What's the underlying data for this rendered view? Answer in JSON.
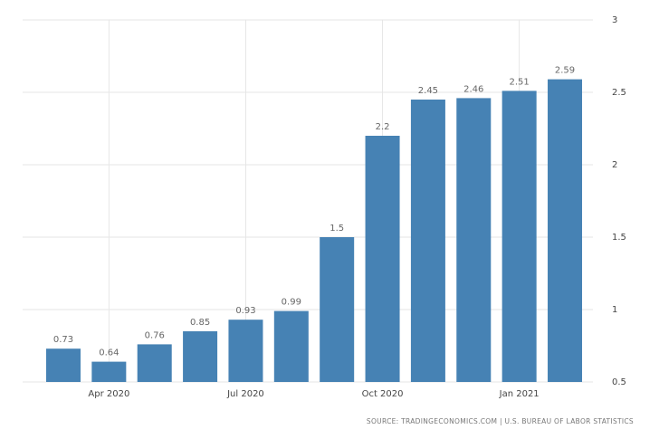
{
  "chart_data": {
    "type": "bar",
    "categories": [
      null,
      "Apr 2020",
      null,
      null,
      "Jul 2020",
      null,
      null,
      "Oct 2020",
      null,
      null,
      "Jan 2021",
      null
    ],
    "values": [
      0.73,
      0.64,
      0.76,
      0.85,
      0.93,
      0.99,
      1.5,
      2.2,
      2.45,
      2.46,
      2.51,
      2.59
    ],
    "color": "#4682b4",
    "ylim": [
      0.5,
      3
    ],
    "yticks": [
      0.5,
      1,
      1.5,
      2,
      2.5,
      3
    ],
    "grid": true,
    "source": "SOURCE: TRADINGECONOMICS.COM | U.S. BUREAU OF LABOR STATISTICS"
  }
}
